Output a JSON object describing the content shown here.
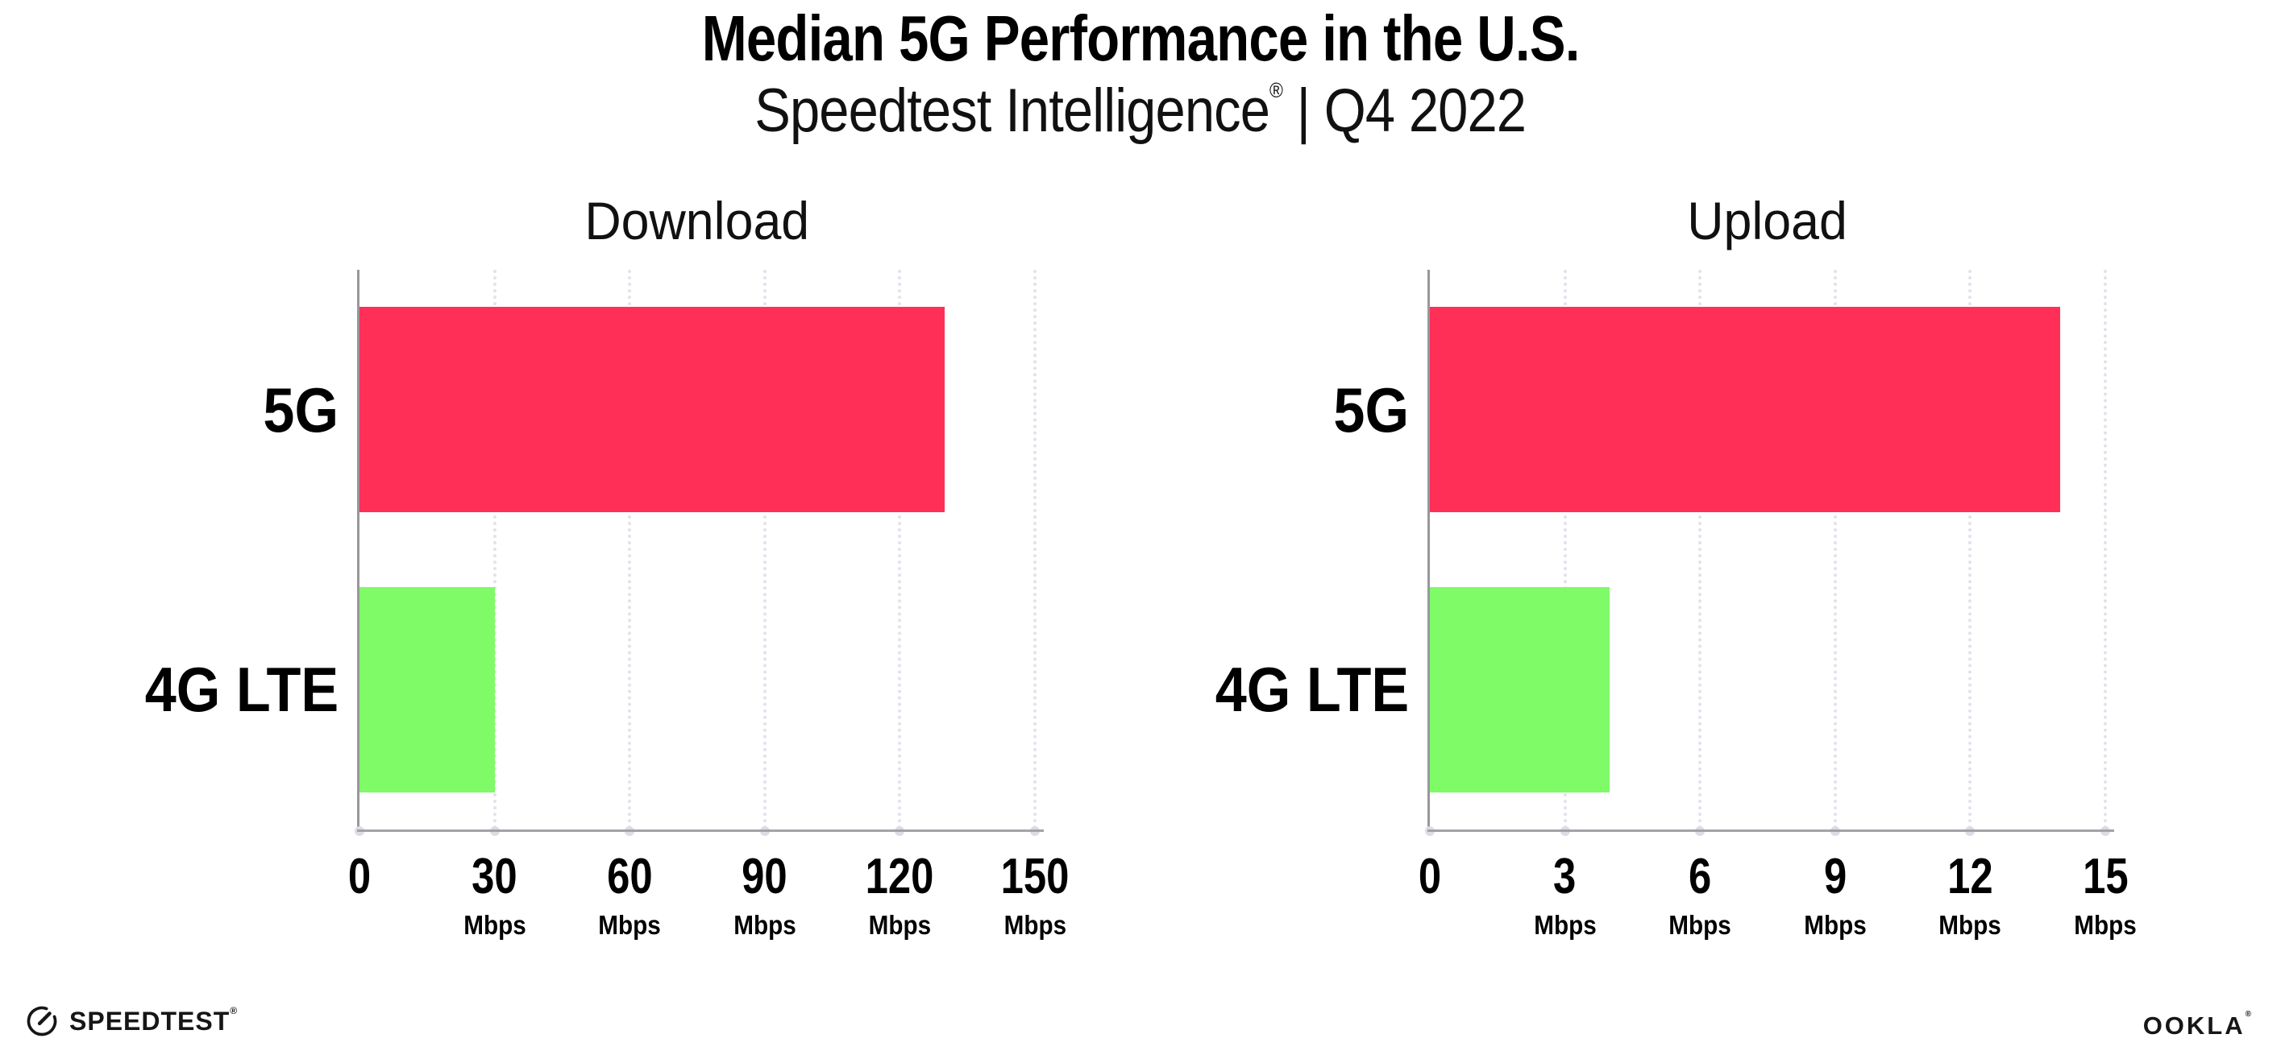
{
  "header": {
    "title": "Median 5G Performance in the U.S.",
    "subtitle": {
      "brand": "Speedtest Intelligence",
      "registered_mark": "®",
      "separator": "|",
      "period": "Q4 2022"
    }
  },
  "chart_data": [
    {
      "type": "bar",
      "orientation": "horizontal",
      "title": "Download",
      "categories": [
        "5G",
        "4G LTE"
      ],
      "values": [
        130,
        30
      ],
      "unit": "Mbps",
      "xlim": [
        0,
        150
      ],
      "xticks": [
        0,
        30,
        60,
        90,
        120,
        150
      ],
      "bar_colors": [
        "#FF2F57",
        "#7EFB66"
      ],
      "grid": "vertical-dotted",
      "tick_unit_on_zero": false,
      "legend": "none"
    },
    {
      "type": "bar",
      "orientation": "horizontal",
      "title": "Upload",
      "categories": [
        "5G",
        "4G LTE"
      ],
      "values": [
        14,
        4
      ],
      "unit": "Mbps",
      "xlim": [
        0,
        15
      ],
      "xticks": [
        0,
        3,
        6,
        9,
        12,
        15
      ],
      "bar_colors": [
        "#FF2F57",
        "#7EFB66"
      ],
      "grid": "vertical-dotted",
      "tick_unit_on_zero": false,
      "legend": "none"
    }
  ],
  "footer": {
    "speedtest": {
      "label": "SPEEDTEST",
      "mark": "®",
      "icon": "speedtest-gauge-icon"
    },
    "ookla": {
      "label": "OOKLA",
      "mark": "®"
    }
  },
  "colors": {
    "bar_5g": "#FF2F57",
    "bar_4g_lte": "#7EFB66",
    "gridline": "#E2E2EC",
    "axis": "#97979C",
    "text": "#000000",
    "background": "#FFFFFF"
  }
}
